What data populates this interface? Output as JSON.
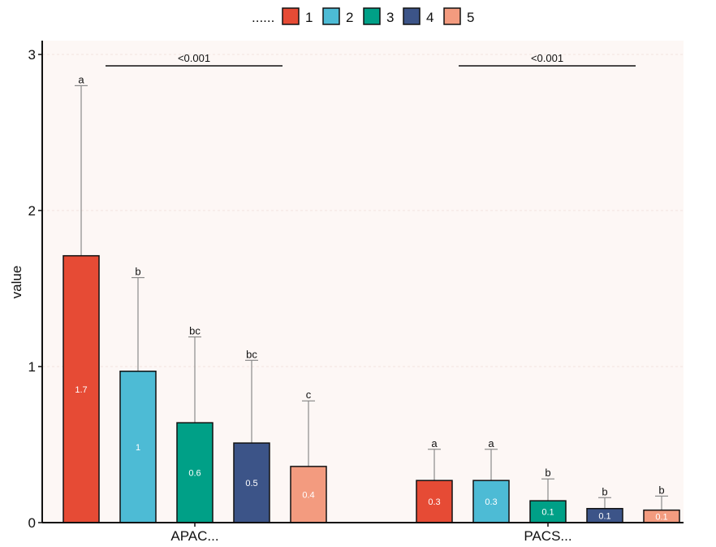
{
  "chart_data": {
    "type": "bar",
    "title": "",
    "xlabel": "",
    "ylabel": "value",
    "ylim": [
      0,
      3
    ],
    "yticks": [
      0,
      1,
      2,
      3
    ],
    "legend": {
      "title": "......",
      "placement": "top"
    },
    "categories": [
      "APAC...",
      "PACS..."
    ],
    "series": [
      {
        "name": "1",
        "color": "#E64B35",
        "values": [
          1.71,
          0.27
        ],
        "errors": [
          2.8,
          0.47
        ],
        "letters": [
          "a",
          "a"
        ],
        "labels": [
          "1.7",
          "0.3"
        ]
      },
      {
        "name": "2",
        "color": "#4DBBD5",
        "values": [
          0.97,
          0.27
        ],
        "errors": [
          1.57,
          0.47
        ],
        "letters": [
          "b",
          "a"
        ],
        "labels": [
          "1",
          "0.3"
        ]
      },
      {
        "name": "3",
        "color": "#00A087",
        "values": [
          0.64,
          0.14
        ],
        "errors": [
          1.19,
          0.28
        ],
        "letters": [
          "bc",
          "b"
        ],
        "labels": [
          "0.6",
          "0.1"
        ]
      },
      {
        "name": "4",
        "color": "#3C5488",
        "values": [
          0.51,
          0.09
        ],
        "errors": [
          1.04,
          0.16
        ],
        "letters": [
          "bc",
          "b"
        ],
        "labels": [
          "0.5",
          "0.1"
        ]
      },
      {
        "name": "5",
        "color": "#F39B7F",
        "values": [
          0.36,
          0.08
        ],
        "errors": [
          0.78,
          0.17
        ],
        "letters": [
          "c",
          "b"
        ],
        "labels": [
          "0.4",
          "0.1"
        ]
      }
    ],
    "pvalues": [
      "<0.001",
      "<0.001"
    ]
  }
}
